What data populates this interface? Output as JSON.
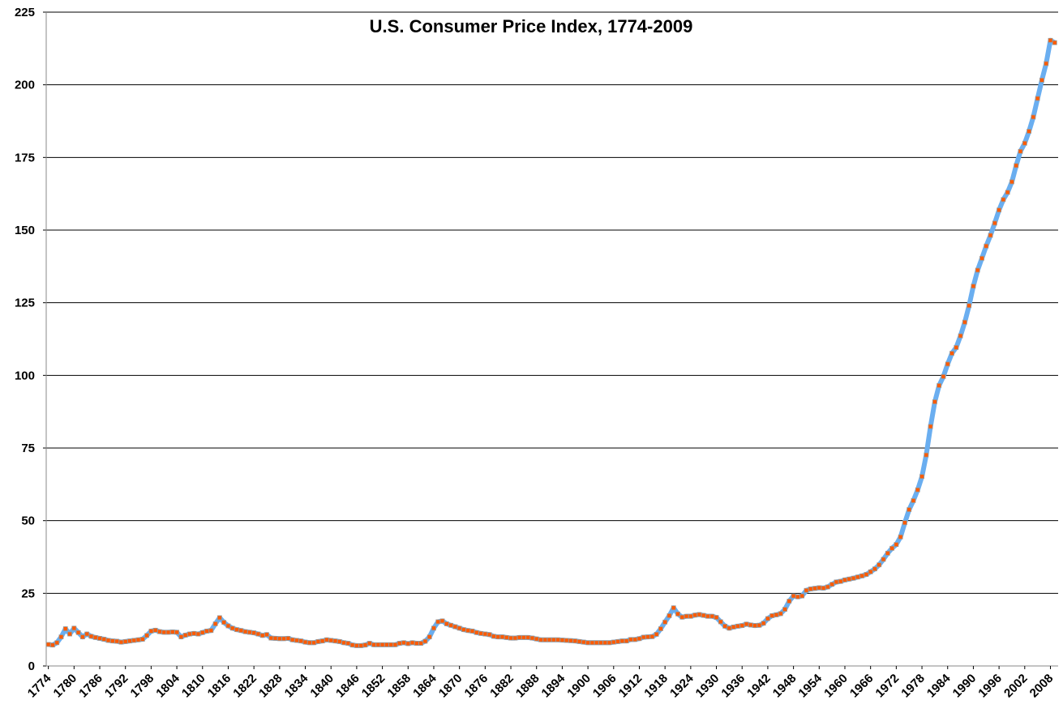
{
  "chart_data": {
    "type": "line",
    "title": "U.S. Consumer Price Index, 1774-2009",
    "x": [
      1774,
      1775,
      1776,
      1777,
      1778,
      1779,
      1780,
      1781,
      1782,
      1783,
      1784,
      1785,
      1786,
      1787,
      1788,
      1789,
      1790,
      1791,
      1792,
      1793,
      1794,
      1795,
      1796,
      1797,
      1798,
      1799,
      1800,
      1801,
      1802,
      1803,
      1804,
      1805,
      1806,
      1807,
      1808,
      1809,
      1810,
      1811,
      1812,
      1813,
      1814,
      1815,
      1816,
      1817,
      1818,
      1819,
      1820,
      1821,
      1822,
      1823,
      1824,
      1825,
      1826,
      1827,
      1828,
      1829,
      1830,
      1831,
      1832,
      1833,
      1834,
      1835,
      1836,
      1837,
      1838,
      1839,
      1840,
      1841,
      1842,
      1843,
      1844,
      1845,
      1846,
      1847,
      1848,
      1849,
      1850,
      1851,
      1852,
      1853,
      1854,
      1855,
      1856,
      1857,
      1858,
      1859,
      1860,
      1861,
      1862,
      1863,
      1864,
      1865,
      1866,
      1867,
      1868,
      1869,
      1870,
      1871,
      1872,
      1873,
      1874,
      1875,
      1876,
      1877,
      1878,
      1879,
      1880,
      1881,
      1882,
      1883,
      1884,
      1885,
      1886,
      1887,
      1888,
      1889,
      1890,
      1891,
      1892,
      1893,
      1894,
      1895,
      1896,
      1897,
      1898,
      1899,
      1900,
      1901,
      1902,
      1903,
      1904,
      1905,
      1906,
      1907,
      1908,
      1909,
      1910,
      1911,
      1912,
      1913,
      1914,
      1915,
      1916,
      1917,
      1918,
      1919,
      1920,
      1921,
      1922,
      1923,
      1924,
      1925,
      1926,
      1927,
      1928,
      1929,
      1930,
      1931,
      1932,
      1933,
      1934,
      1935,
      1936,
      1937,
      1938,
      1939,
      1940,
      1941,
      1942,
      1943,
      1944,
      1945,
      1946,
      1947,
      1948,
      1949,
      1950,
      1951,
      1952,
      1953,
      1954,
      1955,
      1956,
      1957,
      1958,
      1959,
      1960,
      1961,
      1962,
      1963,
      1964,
      1965,
      1966,
      1967,
      1968,
      1969,
      1970,
      1971,
      1972,
      1973,
      1974,
      1975,
      1976,
      1977,
      1978,
      1979,
      1980,
      1981,
      1982,
      1983,
      1984,
      1985,
      1986,
      1987,
      1988,
      1989,
      1990,
      1991,
      1992,
      1993,
      1994,
      1995,
      1996,
      1997,
      1998,
      1999,
      2000,
      2001,
      2002,
      2003,
      2004,
      2005,
      2006,
      2007,
      2008,
      2009
    ],
    "values": [
      7.4,
      7.2,
      8.0,
      10.0,
      12.8,
      11.0,
      13.0,
      11.5,
      10.0,
      11.0,
      10.2,
      9.8,
      9.5,
      9.2,
      8.8,
      8.6,
      8.5,
      8.2,
      8.4,
      8.6,
      8.8,
      9.0,
      9.2,
      10.5,
      12.0,
      12.3,
      11.8,
      11.6,
      11.6,
      11.7,
      11.6,
      10.0,
      10.6,
      11.0,
      11.2,
      11.0,
      11.5,
      12.0,
      12.2,
      14.5,
      16.6,
      15.0,
      13.8,
      13.0,
      12.5,
      12.2,
      11.8,
      11.6,
      11.4,
      11.0,
      10.5,
      10.8,
      9.6,
      9.5,
      9.4,
      9.4,
      9.5,
      9.0,
      8.8,
      8.6,
      8.2,
      8.0,
      8.0,
      8.4,
      8.6,
      9.0,
      8.8,
      8.6,
      8.4,
      8.0,
      7.8,
      7.2,
      7.0,
      7.0,
      7.2,
      7.8,
      7.3,
      7.3,
      7.3,
      7.3,
      7.3,
      7.3,
      7.8,
      8.0,
      7.7,
      8.0,
      7.8,
      7.8,
      8.5,
      10.0,
      13.0,
      15.2,
      15.5,
      14.5,
      14.0,
      13.5,
      13.0,
      12.5,
      12.2,
      12.0,
      11.5,
      11.2,
      11.0,
      10.8,
      10.2,
      10.0,
      10.0,
      9.8,
      9.6,
      9.6,
      9.8,
      9.8,
      9.8,
      9.6,
      9.3,
      9.0,
      9.0,
      9.0,
      9.0,
      9.0,
      8.9,
      8.8,
      8.7,
      8.6,
      8.4,
      8.2,
      8.0,
      8.0,
      8.0,
      8.0,
      8.0,
      8.0,
      8.2,
      8.4,
      8.6,
      8.6,
      9.1,
      9.1,
      9.4,
      9.9,
      10.0,
      10.1,
      10.9,
      12.8,
      15.1,
      17.3,
      20.0,
      17.9,
      16.8,
      17.1,
      17.1,
      17.5,
      17.7,
      17.4,
      17.1,
      17.1,
      16.7,
      15.2,
      13.7,
      13.0,
      13.4,
      13.7,
      13.9,
      14.4,
      14.1,
      13.9,
      14.0,
      14.7,
      16.3,
      17.3,
      17.6,
      18.0,
      19.5,
      22.3,
      24.1,
      23.8,
      24.1,
      26.0,
      26.5,
      26.7,
      26.9,
      26.8,
      27.2,
      28.1,
      28.9,
      29.1,
      29.6,
      29.9,
      30.2,
      30.6,
      31.0,
      31.5,
      32.4,
      33.4,
      34.8,
      36.7,
      38.8,
      40.5,
      41.8,
      44.4,
      49.3,
      53.8,
      56.9,
      60.6,
      65.2,
      72.6,
      82.4,
      90.9,
      96.5,
      99.6,
      103.9,
      107.6,
      109.6,
      113.6,
      118.3,
      124.0,
      130.7,
      136.2,
      140.3,
      144.5,
      148.2,
      152.4,
      156.9,
      160.5,
      163.0,
      166.6,
      172.2,
      177.1,
      179.9,
      184.0,
      188.9,
      195.3,
      201.6,
      207.3,
      215.3,
      214.5
    ],
    "color": "#6aaef0",
    "marker_color": "#ff5a00",
    "xlim": [
      1773.5,
      2009.8
    ],
    "xticks": [
      1774,
      1780,
      1786,
      1792,
      1798,
      1804,
      1810,
      1816,
      1822,
      1828,
      1834,
      1840,
      1846,
      1852,
      1858,
      1864,
      1870,
      1876,
      1882,
      1888,
      1894,
      1900,
      1906,
      1912,
      1918,
      1924,
      1930,
      1936,
      1942,
      1948,
      1954,
      1960,
      1966,
      1972,
      1978,
      1984,
      1990,
      1996,
      2002,
      2008
    ],
    "ylim": [
      0,
      225
    ],
    "yticks": [
      0,
      25,
      50,
      75,
      100,
      125,
      150,
      175,
      200,
      225
    ],
    "grid": true
  }
}
